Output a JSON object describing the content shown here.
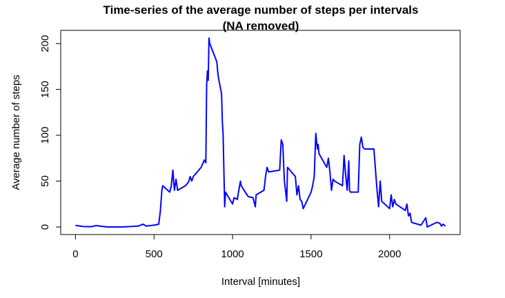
{
  "chart_data": {
    "type": "line",
    "title": "Time-series of the average number of steps per intervals",
    "subtitle": "(NA removed)",
    "x_label": "Interval [minutes]",
    "y_label": "Average number of steps",
    "color": "#0000ff",
    "x": [
      0,
      50,
      100,
      130,
      200,
      300,
      400,
      430,
      450,
      500,
      530,
      540,
      550,
      555,
      600,
      610,
      620,
      625,
      630,
      640,
      650,
      700,
      720,
      730,
      740,
      750,
      800,
      820,
      830,
      835,
      840,
      845,
      850,
      855,
      900,
      905,
      910,
      930,
      935,
      940,
      945,
      950,
      955,
      1000,
      1010,
      1030,
      1050,
      1055,
      1100,
      1130,
      1145,
      1150,
      1200,
      1210,
      1220,
      1230,
      1300,
      1310,
      1320,
      1330,
      1345,
      1350,
      1400,
      1410,
      1420,
      1430,
      1440,
      1450,
      1500,
      1510,
      1520,
      1530,
      1540,
      1545,
      1550,
      1600,
      1610,
      1620,
      1630,
      1640,
      1650,
      1700,
      1710,
      1720,
      1730,
      1740,
      1745,
      1750,
      1800,
      1810,
      1820,
      1830,
      1840,
      1900,
      1920,
      1930,
      1940,
      1950,
      2000,
      2010,
      2020,
      2030,
      2040,
      2100,
      2110,
      2120,
      2130,
      2140,
      2200,
      2230,
      2240,
      2300,
      2320,
      2330,
      2340,
      2355
    ],
    "values": [
      1.7,
      0.5,
      0.3,
      1.5,
      0,
      0,
      1,
      3,
      1,
      2,
      3,
      17,
      40,
      45,
      38,
      45,
      62,
      50,
      40,
      52,
      40,
      45,
      49,
      55,
      50,
      55,
      65,
      73,
      70,
      155,
      170,
      160,
      206,
      200,
      180,
      170,
      163,
      145,
      115,
      100,
      60,
      22,
      38,
      25,
      32,
      30,
      50,
      45,
      33,
      32,
      22,
      35,
      40,
      55,
      65,
      60,
      62,
      95,
      90,
      50,
      28,
      65,
      55,
      35,
      45,
      30,
      28,
      20,
      38,
      45,
      55,
      102,
      85,
      90,
      80,
      65,
      75,
      60,
      40,
      52,
      50,
      45,
      78,
      57,
      40,
      72,
      40,
      38,
      38,
      90,
      98,
      87,
      85,
      85,
      40,
      22,
      50,
      28,
      20,
      35,
      22,
      30,
      25,
      18,
      25,
      12,
      15,
      5,
      2,
      10,
      0,
      5,
      4,
      1,
      3,
      1
    ],
    "xlim": [
      -94.2,
      2449.2
    ],
    "ylim": [
      -8.25,
      214.4
    ],
    "xticks": [
      0,
      500,
      1000,
      1500,
      2000
    ],
    "yticks": [
      0,
      50,
      100,
      150,
      200
    ]
  }
}
